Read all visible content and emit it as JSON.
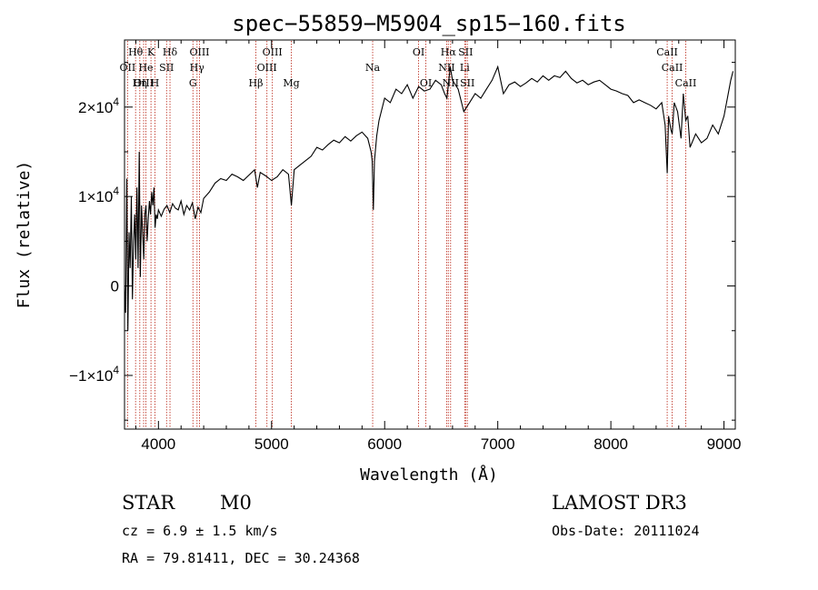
{
  "chart_data": {
    "type": "line",
    "title": "spec−55859−M5904_sp15−160.fits",
    "xlabel": "Wavelength (Å)",
    "ylabel": "Flux (relative)",
    "xlim": [
      3700,
      9100
    ],
    "ylim": [
      -16000,
      27500
    ],
    "x_ticks": [
      {
        "value": 4000,
        "label": "4000"
      },
      {
        "value": 5000,
        "label": "5000"
      },
      {
        "value": 6000,
        "label": "6000"
      },
      {
        "value": 7000,
        "label": "7000"
      },
      {
        "value": 8000,
        "label": "8000"
      },
      {
        "value": 9000,
        "label": "9000"
      }
    ],
    "y_ticks": [
      {
        "value": -10000,
        "mantissa": "−1×10",
        "exp": "4"
      },
      {
        "value": 0,
        "mantissa": "0",
        "exp": ""
      },
      {
        "value": 10000,
        "mantissa": "1×10",
        "exp": "4"
      },
      {
        "value": 20000,
        "mantissa": "2×10",
        "exp": "4"
      }
    ],
    "series": [
      {
        "name": "spectrum",
        "x": [
          3700,
          3710,
          3720,
          3730,
          3740,
          3750,
          3760,
          3770,
          3780,
          3790,
          3800,
          3810,
          3820,
          3830,
          3840,
          3850,
          3860,
          3870,
          3880,
          3890,
          3900,
          3910,
          3920,
          3930,
          3940,
          3950,
          3960,
          3970,
          3980,
          3990,
          4000,
          4025,
          4050,
          4075,
          4100,
          4125,
          4150,
          4175,
          4200,
          4225,
          4250,
          4275,
          4300,
          4325,
          4350,
          4375,
          4400,
          4450,
          4500,
          4550,
          4600,
          4650,
          4700,
          4750,
          4800,
          4850,
          4875,
          4900,
          4950,
          5000,
          5050,
          5100,
          5150,
          5175,
          5200,
          5250,
          5300,
          5350,
          5400,
          5450,
          5500,
          5550,
          5600,
          5650,
          5700,
          5750,
          5800,
          5850,
          5880,
          5890,
          5900,
          5910,
          5930,
          5950,
          6000,
          6050,
          6100,
          6150,
          6200,
          6250,
          6300,
          6350,
          6400,
          6450,
          6500,
          6530,
          6550,
          6563,
          6580,
          6600,
          6650,
          6700,
          6750,
          6800,
          6850,
          6900,
          6950,
          7000,
          7050,
          7100,
          7150,
          7200,
          7250,
          7300,
          7350,
          7400,
          7450,
          7500,
          7550,
          7600,
          7650,
          7700,
          7750,
          7800,
          7850,
          7900,
          7950,
          8000,
          8050,
          8100,
          8150,
          8200,
          8250,
          8300,
          8350,
          8400,
          8450,
          8480,
          8498,
          8510,
          8530,
          8542,
          8560,
          8590,
          8620,
          8640,
          8662,
          8680,
          8700,
          8750,
          8800,
          8850,
          8900,
          8950,
          9000,
          9030,
          9060,
          9080
        ],
        "y": [
          0,
          -3000,
          12000,
          -5000,
          6000,
          2000,
          10000,
          -1500,
          5000,
          8000,
          3000,
          11000,
          2000,
          15000,
          1000,
          9000,
          6000,
          3000,
          8000,
          9000,
          5000,
          7500,
          9500,
          8000,
          10500,
          9000,
          11000,
          6500,
          8000,
          7500,
          8500,
          7800,
          8600,
          9000,
          8200,
          9200,
          8700,
          8500,
          9500,
          8000,
          9000,
          8500,
          9300,
          7500,
          8800,
          8200,
          9800,
          10500,
          11500,
          12000,
          11800,
          12500,
          12200,
          11800,
          12400,
          13000,
          11000,
          12700,
          12300,
          11800,
          12200,
          13000,
          12500,
          9000,
          13000,
          13500,
          14000,
          14500,
          15500,
          15200,
          15800,
          16300,
          16000,
          16700,
          16200,
          16800,
          17200,
          16500,
          15000,
          14000,
          8500,
          14000,
          16800,
          18500,
          21000,
          20500,
          22000,
          21500,
          22500,
          21000,
          22300,
          21800,
          22000,
          23000,
          22500,
          21500,
          21000,
          22500,
          24500,
          23000,
          22000,
          19500,
          20500,
          21500,
          21000,
          22000,
          23000,
          24500,
          21500,
          22500,
          22800,
          22300,
          22700,
          23200,
          22800,
          23500,
          23000,
          23500,
          23300,
          24000,
          23200,
          22700,
          23000,
          22500,
          22800,
          23000,
          22500,
          22000,
          21800,
          21500,
          21300,
          20500,
          20800,
          20500,
          20200,
          19800,
          20500,
          18000,
          12600,
          19000,
          17500,
          17000,
          20500,
          19500,
          16500,
          21500,
          18500,
          19000,
          15500,
          17000,
          16000,
          16500,
          18000,
          17000,
          19000,
          21000,
          23000,
          24000
        ]
      }
    ],
    "lines": [
      {
        "name": "Hθ",
        "wl": 3798,
        "row": 0
      },
      {
        "name": "OII",
        "wl": 3727,
        "row": 1
      },
      {
        "name": "OIII",
        "wl": 3869,
        "row": 2
      },
      {
        "name": "He",
        "wl": 3889,
        "row": 1
      },
      {
        "name": "Hη",
        "wl": 3835,
        "row": 2
      },
      {
        "name": "K",
        "wl": 3934,
        "row": 0
      },
      {
        "name": "H",
        "wl": 3969,
        "row": 2
      },
      {
        "name": "SII",
        "wl": 4072,
        "row": 1
      },
      {
        "name": "Hδ",
        "wl": 4102,
        "row": 0
      },
      {
        "name": "G",
        "wl": 4305,
        "row": 2
      },
      {
        "name": "Hγ",
        "wl": 4341,
        "row": 1
      },
      {
        "name": "OIII",
        "wl": 4363,
        "row": 0
      },
      {
        "name": "Hβ",
        "wl": 4861,
        "row": 2
      },
      {
        "name": "OIII",
        "wl": 4959,
        "row": 1
      },
      {
        "name": "OIII",
        "wl": 5007,
        "row": 0
      },
      {
        "name": "Mg",
        "wl": 5175,
        "row": 2
      },
      {
        "name": "Na",
        "wl": 5894,
        "row": 1
      },
      {
        "name": "OI",
        "wl": 6300,
        "row": 0
      },
      {
        "name": "OI",
        "wl": 6364,
        "row": 2
      },
      {
        "name": "NII",
        "wl": 6548,
        "row": 1
      },
      {
        "name": "Hα",
        "wl": 6563,
        "row": 0
      },
      {
        "name": "NII",
        "wl": 6583,
        "row": 2
      },
      {
        "name": "Li",
        "wl": 6708,
        "row": 1
      },
      {
        "name": "SII",
        "wl": 6716,
        "row": 0
      },
      {
        "name": "SII",
        "wl": 6731,
        "row": 2
      },
      {
        "name": "CaII",
        "wl": 8498,
        "row": 0
      },
      {
        "name": "CaII",
        "wl": 8542,
        "row": 1
      },
      {
        "name": "CaII",
        "wl": 8662,
        "row": 2
      }
    ]
  },
  "info": {
    "object_class": "STAR",
    "subclass": "M0",
    "survey": "LAMOST DR3",
    "cz": "cz = 6.9 ± 1.5 km/s",
    "obs_date": "Obs-Date: 20111024",
    "coords": "RA =  79.81411, DEC =  30.24368"
  },
  "colors": {
    "line_marker": "#c0392b",
    "spectrum": "#000000",
    "axes": "#000000"
  }
}
